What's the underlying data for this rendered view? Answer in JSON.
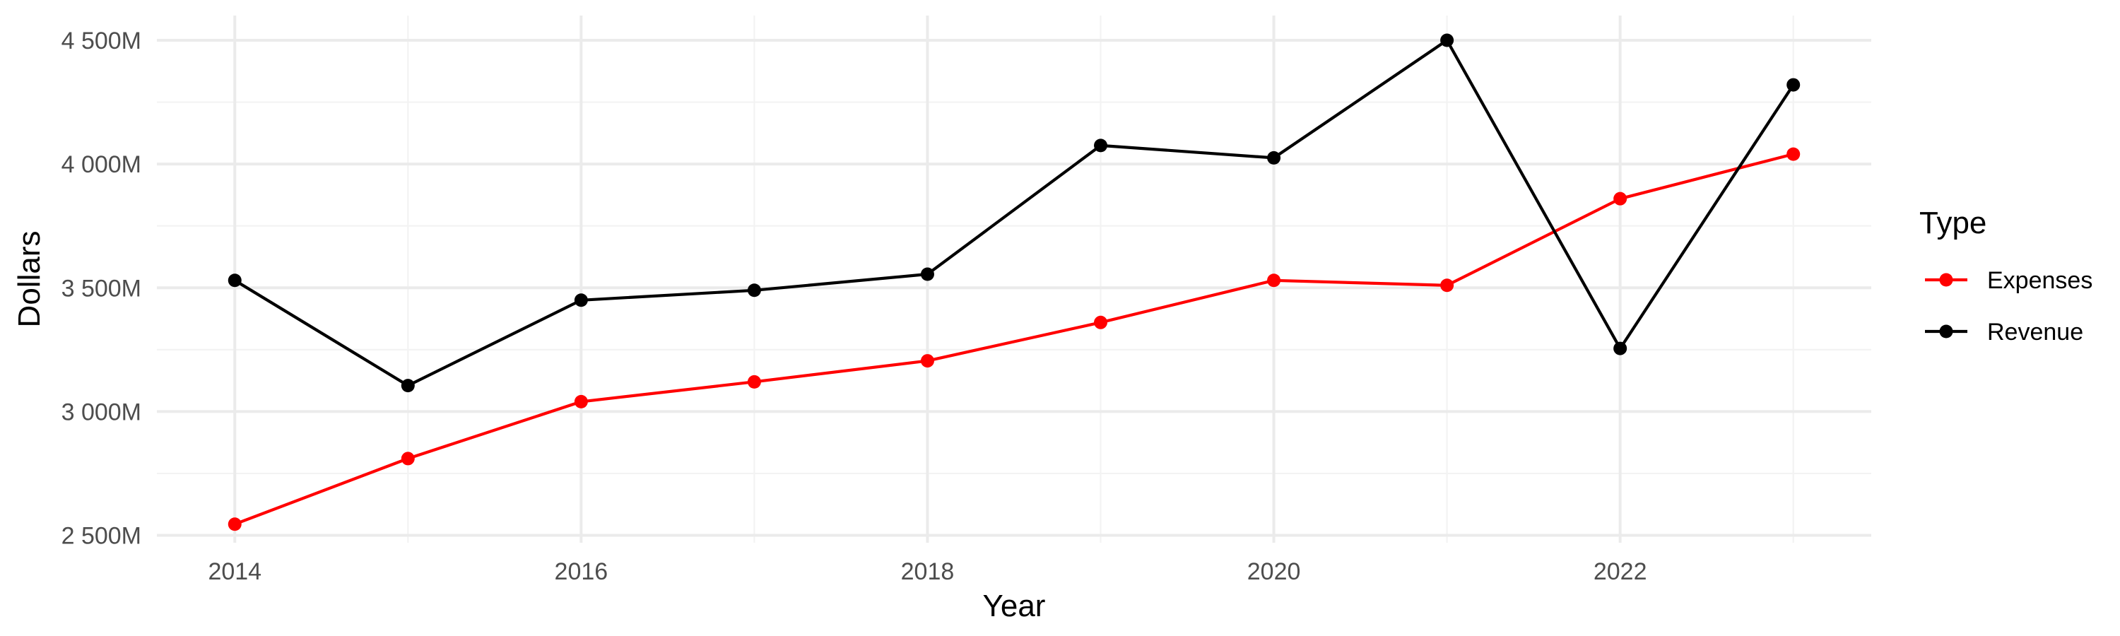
{
  "chart_data": {
    "type": "line",
    "title": "",
    "xlabel": "Year",
    "ylabel": "Dollars",
    "x": [
      2014,
      2015,
      2016,
      2017,
      2018,
      2019,
      2020,
      2021,
      2022,
      2023
    ],
    "xticks": [
      2014,
      2016,
      2018,
      2020,
      2022
    ],
    "xtick_labels": [
      "2014",
      "2016",
      "2018",
      "2020",
      "2022"
    ],
    "xlim": [
      2013.55,
      2023.45
    ],
    "yticks": [
      2500,
      3000,
      3500,
      4000,
      4500
    ],
    "ytick_labels": [
      "2 500M",
      "3 000M",
      "3 500M",
      "4 000M",
      "4 500M"
    ],
    "ylim": [
      2470,
      4600
    ],
    "grid": true,
    "legend": {
      "title": "Type",
      "position": "right",
      "entries": [
        "Expenses",
        "Revenue"
      ]
    },
    "series": [
      {
        "name": "Expenses",
        "color": "#ff0000",
        "values": [
          2545,
          2810,
          3040,
          3120,
          3205,
          3360,
          3530,
          3510,
          3860,
          4040
        ]
      },
      {
        "name": "Revenue",
        "color": "#000000",
        "values": [
          3530,
          3105,
          3450,
          3490,
          3555,
          4075,
          4025,
          4500,
          3255,
          4320
        ]
      }
    ]
  }
}
